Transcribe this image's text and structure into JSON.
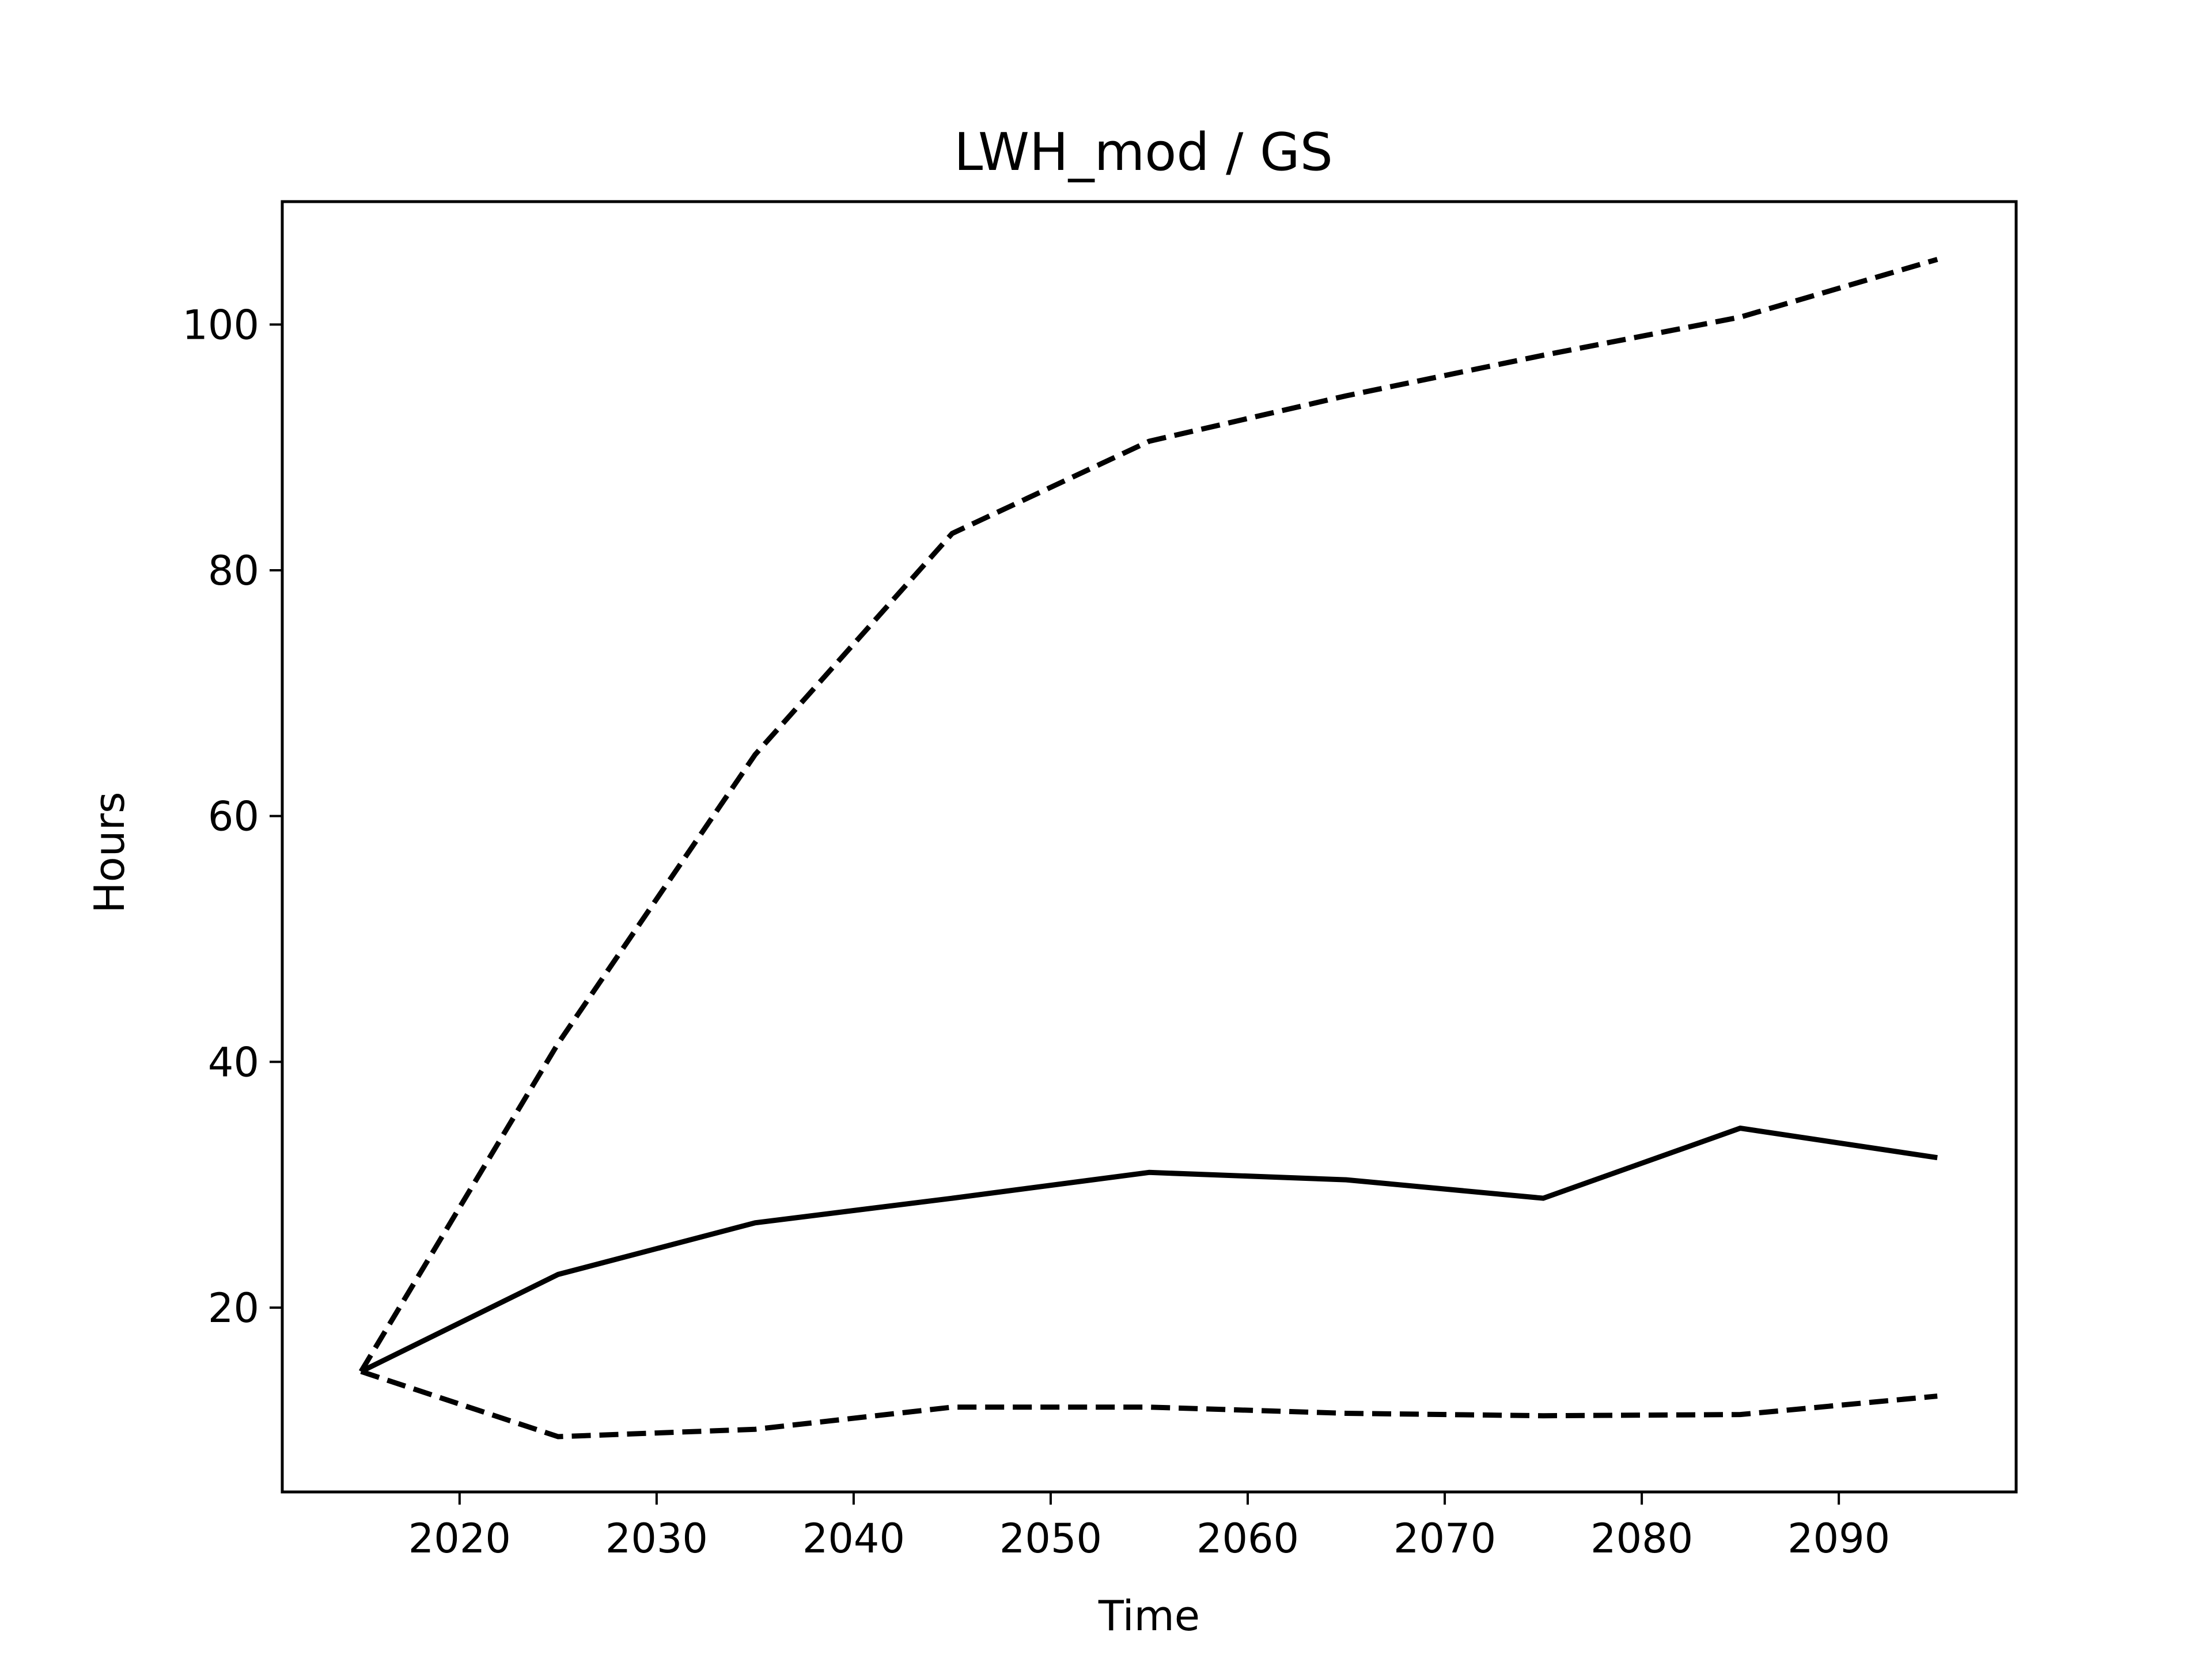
{
  "chart_data": {
    "type": "line",
    "title": "LWH_mod / GS",
    "xlabel": "Time",
    "ylabel": "Hours",
    "xlim": [
      2011,
      2099
    ],
    "ylim": [
      5,
      110
    ],
    "xticks": [
      2020,
      2030,
      2040,
      2050,
      2060,
      2070,
      2080,
      2090
    ],
    "yticks": [
      20,
      40,
      60,
      80,
      100
    ],
    "grid": false,
    "legend": "none",
    "x": [
      2015,
      2025,
      2035,
      2045,
      2055,
      2065,
      2075,
      2085,
      2095
    ],
    "series": [
      {
        "style": "solid",
        "color": "#000000",
        "values": [
          14.8,
          22.7,
          26.9,
          28.9,
          31.0,
          30.4,
          28.9,
          34.6,
          32.2
        ]
      },
      {
        "style": "dashed",
        "color": "#000000",
        "values": [
          14.8,
          41.5,
          65.0,
          83.0,
          90.5,
          94.2,
          97.5,
          100.6,
          105.3
        ]
      },
      {
        "style": "dashed",
        "color": "#000000",
        "values": [
          14.8,
          9.5,
          10.1,
          11.9,
          11.9,
          11.4,
          11.2,
          11.3,
          12.8
        ]
      }
    ]
  }
}
